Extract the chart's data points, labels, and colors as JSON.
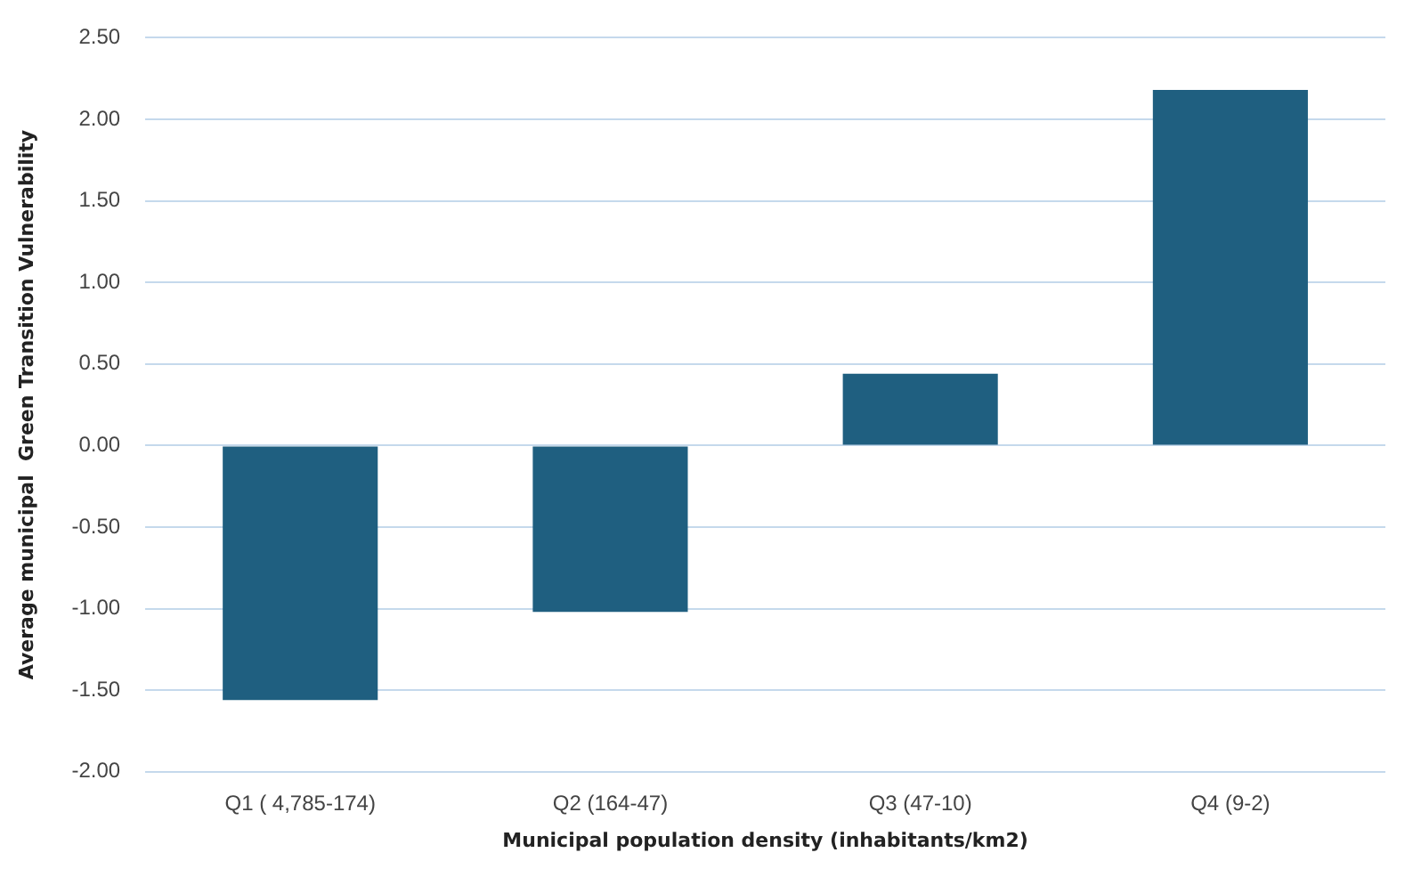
{
  "chart_data": {
    "type": "bar",
    "xlabel": "Municipal population density (inhabitants/km2)",
    "ylabel": "Average municipal  Green Transition Vulnerability",
    "categories": [
      "Q1 ( 4,785-174)",
      "Q2 (164-47)",
      "Q3 (47-10)",
      "Q4 (9-2)"
    ],
    "values": [
      -1.56,
      -1.02,
      0.44,
      2.18
    ],
    "color": "#1f5f80",
    "ylim": [
      -2,
      2.5
    ],
    "yticks": [
      {
        "value": -2,
        "label": "-2.00"
      },
      {
        "value": -1.5,
        "label": "-1.50"
      },
      {
        "value": -1,
        "label": "-1.00"
      },
      {
        "value": -0.5,
        "label": "-0.50"
      },
      {
        "value": 0,
        "label": "0.00"
      },
      {
        "value": 0.5,
        "label": "0.50"
      },
      {
        "value": 1,
        "label": "1.00"
      },
      {
        "value": 1.5,
        "label": "1.50"
      },
      {
        "value": 2,
        "label": "2.00"
      },
      {
        "value": 2.5,
        "label": "2.50"
      }
    ],
    "grid": "y",
    "legend": false
  }
}
